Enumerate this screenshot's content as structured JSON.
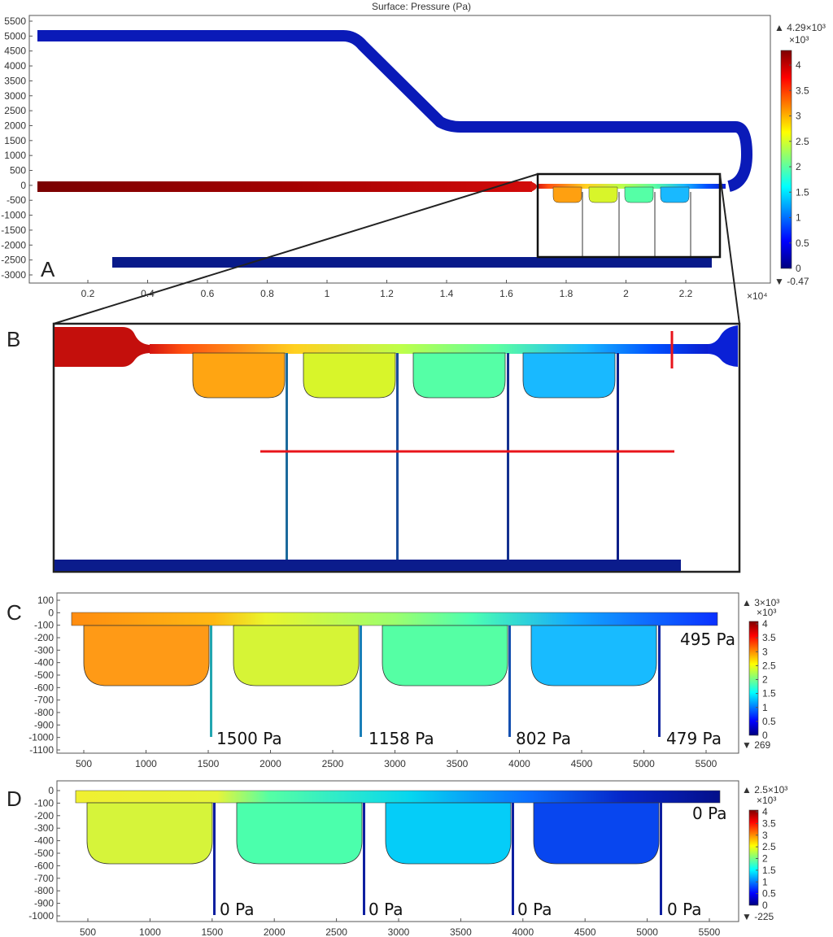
{
  "panelA": {
    "letter": "A",
    "title": "Surface: Pressure (Pa)",
    "y_ticks": [
      "5500",
      "5000",
      "4500",
      "4000",
      "3500",
      "3000",
      "2500",
      "2000",
      "1500",
      "1000",
      "500",
      "0",
      "-500",
      "-1000",
      "-1500",
      "-2000",
      "-2500",
      "-3000"
    ],
    "x_ticks": [
      "0.2",
      "0.4",
      "0.6",
      "0.8",
      "1",
      "1.2",
      "1.4",
      "1.6",
      "1.8",
      "2",
      "2.2"
    ],
    "x_multiplier": "×10⁴",
    "colorbar": {
      "max_label": "▲ 4.29×10³",
      "multiplier": "×10³",
      "ticks": [
        "4",
        "3.5",
        "3",
        "2.5",
        "2",
        "1.5",
        "1",
        "0.5",
        "0"
      ],
      "min_label": "▼ -0.47"
    }
  },
  "panelB": {
    "letter": "B"
  },
  "panelC": {
    "letter": "C",
    "y_ticks": [
      "100",
      "0",
      "-100",
      "-200",
      "-300",
      "-400",
      "-500",
      "-600",
      "-700",
      "-800",
      "-900",
      "-1000",
      "-1100"
    ],
    "x_ticks": [
      "500",
      "1000",
      "1500",
      "2000",
      "2500",
      "3000",
      "3500",
      "4000",
      "4500",
      "5000",
      "5500"
    ],
    "colorbar": {
      "max_label": "▲ 3×10³",
      "multiplier": "×10³",
      "ticks": [
        "4",
        "3.5",
        "3",
        "2.5",
        "2",
        "1.5",
        "1",
        "0.5",
        "0"
      ],
      "min_label": "▼ 269"
    },
    "outlet_label": "495 Pa",
    "channel_labels": [
      "1500 Pa",
      "1158 Pa",
      "802 Pa",
      "479 Pa"
    ]
  },
  "panelD": {
    "letter": "D",
    "y_ticks": [
      "0",
      "-100",
      "-200",
      "-300",
      "-400",
      "-500",
      "-600",
      "-700",
      "-800",
      "-900",
      "-1000"
    ],
    "x_ticks": [
      "500",
      "1000",
      "1500",
      "2000",
      "2500",
      "3000",
      "3500",
      "4000",
      "4500",
      "5000",
      "5500"
    ],
    "colorbar": {
      "max_label": "▲ 2.5×10³",
      "multiplier": "×10³",
      "ticks": [
        "4",
        "3.5",
        "3",
        "2.5",
        "2",
        "1.5",
        "1",
        "0.5",
        "0"
      ],
      "min_label": "▼ -225"
    },
    "outlet_label": "0 Pa",
    "channel_labels": [
      "0 Pa",
      "0 Pa",
      "0 Pa",
      "0 Pa"
    ]
  },
  "colors": {
    "jet": [
      "#00007f",
      "#0000ff",
      "#007fff",
      "#00ffff",
      "#7fff7f",
      "#ffff00",
      "#ff7f00",
      "#ff0000",
      "#7f0000"
    ],
    "frame": "#222222",
    "red_marker": "#e8141b",
    "deep_blue": "#0a1f8f",
    "dark_red": "#b50d0d",
    "chamberA_1": "#ffa010",
    "chamberA_2": "#d8f52a",
    "chamberA_3": "#55ffa6",
    "chamberA_4": "#19b9ff",
    "chamberC_1": "#ff9a16",
    "chamberC_2": "#d6f436",
    "chamberC_3": "#55ffa4",
    "chamberC_4": "#18bbff",
    "chamberD_1": "#d6f43a",
    "chamberD_2": "#4bffac",
    "chamberD_3": "#05cdf8",
    "chamberD_4": "#0846ef"
  }
}
